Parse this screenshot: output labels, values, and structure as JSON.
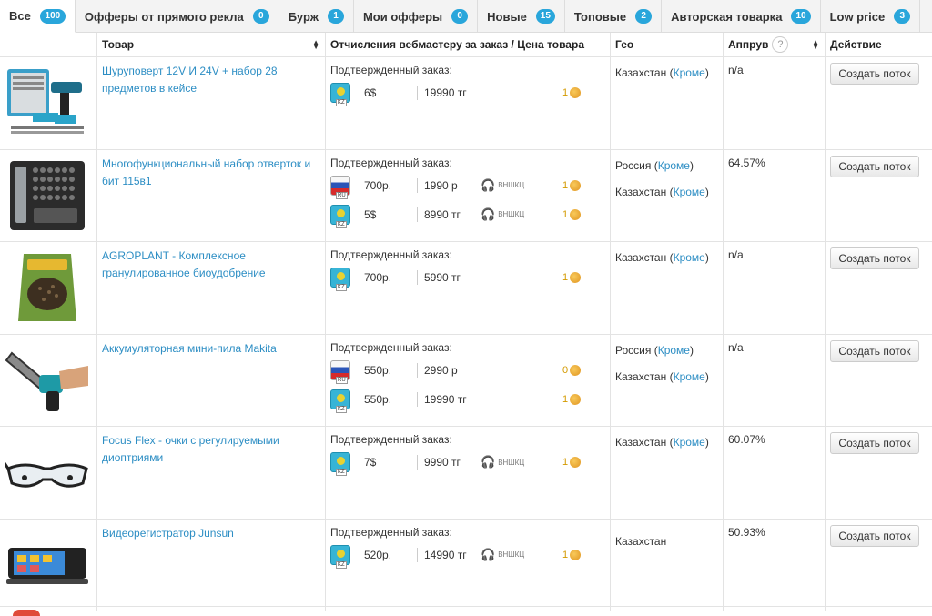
{
  "tabs": [
    {
      "label": "Все",
      "count": "100",
      "active": true
    },
    {
      "label": "Офферы от прямого рекла",
      "count": "0"
    },
    {
      "label": "Бурж",
      "count": "1"
    },
    {
      "label": "Мои офферы",
      "count": "0"
    },
    {
      "label": "Новые",
      "count": "15"
    },
    {
      "label": "Топовые",
      "count": "2"
    },
    {
      "label": "Авторская товарка",
      "count": "10"
    },
    {
      "label": "Low price",
      "count": "3"
    }
  ],
  "table": {
    "headers": {
      "product": "Товар",
      "payout": "Отчисления вебмастеру за заказ / Цена товара",
      "geo": "Гео",
      "approve": "Аппрув",
      "approve_help": "?",
      "action": "Действие"
    },
    "rows": [
      {
        "image_icon": "drill-kit-icon",
        "product": "Шуруповерт 12V И 24V + набор 28 предметов в кейсе",
        "payout_title": "Подтвержденный заказ:",
        "lines": [
          {
            "flag": "kz",
            "flag_tag": "KZ",
            "amount": "6$",
            "price": "19990 тг",
            "hp": "",
            "coins": "1"
          }
        ],
        "geo": [
          {
            "country": "Казахстан",
            "link": "Кроме"
          }
        ],
        "approve": "n/a",
        "button": "Создать поток"
      },
      {
        "image_icon": "screwdriver-set-icon",
        "product": "Многофункциональный набор отверток и бит 115в1",
        "payout_title": "Подтвержденный заказ:",
        "lines": [
          {
            "flag": "ru",
            "flag_tag": "RU",
            "amount": "700р.",
            "price": "1990 р",
            "hp": "ВНШКЦ",
            "coins": "1"
          },
          {
            "flag": "kz",
            "flag_tag": "KZ",
            "amount": "5$",
            "price": "8990 тг",
            "hp": "ВНШКЦ",
            "coins": "1"
          }
        ],
        "geo": [
          {
            "country": "Россия",
            "link": "Кроме"
          },
          {
            "country": "Казахстан",
            "link": "Кроме"
          }
        ],
        "approve": "64.57%",
        "button": "Создать поток"
      },
      {
        "image_icon": "fertilizer-bag-icon",
        "product": "AGROPLANT - Комплексное гранулированное биоудобрение",
        "payout_title": "Подтвержденный заказ:",
        "lines": [
          {
            "flag": "kz",
            "flag_tag": "KZ",
            "amount": "700р.",
            "price": "5990 тг",
            "hp": "",
            "coins": "1"
          }
        ],
        "geo": [
          {
            "country": "Казахстан",
            "link": "Кроме"
          }
        ],
        "approve": "n/a",
        "button": "Создать поток"
      },
      {
        "image_icon": "chainsaw-icon",
        "product": "Аккумуляторная мини-пила Makita",
        "payout_title": "Подтвержденный заказ:",
        "lines": [
          {
            "flag": "ru",
            "flag_tag": "RU",
            "amount": "550р.",
            "price": "2990 р",
            "hp": "",
            "coins": "0"
          },
          {
            "flag": "kz",
            "flag_tag": "KZ",
            "amount": "550р.",
            "price": "19990 тг",
            "hp": "",
            "coins": "1"
          }
        ],
        "geo": [
          {
            "country": "Россия",
            "link": "Кроме"
          },
          {
            "country": "Казахстан",
            "link": "Кроме"
          }
        ],
        "approve": "n/a",
        "button": "Создать поток"
      },
      {
        "image_icon": "glasses-icon",
        "product": "Focus Flex - очки с регулируемыми диоптриями",
        "payout_title": "Подтвержденный заказ:",
        "lines": [
          {
            "flag": "kz",
            "flag_tag": "KZ",
            "amount": "7$",
            "price": "9990 тг",
            "hp": "ВНШКЦ",
            "coins": "1"
          }
        ],
        "geo": [
          {
            "country": "Казахстан",
            "link": "Кроме"
          }
        ],
        "approve": "60.07%",
        "button": "Создать поток"
      },
      {
        "image_icon": "dashcam-icon",
        "product": "Видеорегистратор Junsun",
        "payout_title": "Подтвержденный заказ:",
        "lines": [
          {
            "flag": "kz",
            "flag_tag": "KZ",
            "amount": "520р.",
            "price": "14990 тг",
            "hp": "ВНШКЦ",
            "coins": "1"
          }
        ],
        "geo": [
          {
            "country": "Казахстан",
            "link": ""
          }
        ],
        "approve": "50.93%",
        "button": "Создать поток"
      }
    ]
  },
  "colors": {
    "accent": "#29a6db",
    "link": "#2d8ec4",
    "coin": "#e09421"
  }
}
